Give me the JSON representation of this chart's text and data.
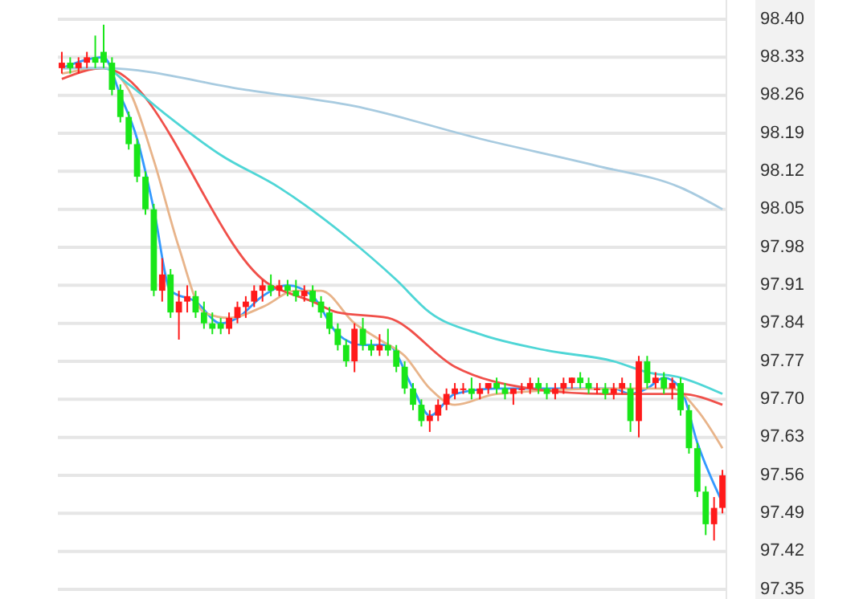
{
  "chart_data": {
    "type": "candlestick",
    "categories": [
      null,
      null,
      null,
      null,
      null,
      null,
      null,
      null,
      null,
      null,
      null,
      null,
      null,
      null,
      null,
      null,
      null,
      null,
      null,
      null,
      null,
      null,
      null,
      null,
      null,
      null,
      null,
      null,
      null,
      null,
      null,
      null,
      null,
      null,
      null,
      null,
      null,
      null,
      null,
      null,
      null,
      null,
      null,
      null,
      null,
      null,
      null,
      null,
      null,
      null,
      null,
      null,
      null,
      null,
      null,
      null,
      null,
      null,
      null,
      null,
      null,
      null,
      null,
      null,
      null,
      null,
      null,
      null,
      null,
      null,
      null,
      null,
      null,
      null,
      null,
      null,
      null,
      null,
      null,
      null
    ],
    "ohlc": [
      [
        98.31,
        98.34,
        98.3,
        98.32
      ],
      [
        98.32,
        98.33,
        98.3,
        98.31
      ],
      [
        98.31,
        98.33,
        98.3,
        98.32
      ],
      [
        98.32,
        98.34,
        98.31,
        98.33
      ],
      [
        98.33,
        98.37,
        98.31,
        98.32
      ],
      [
        98.34,
        98.39,
        98.31,
        98.32
      ],
      [
        98.32,
        98.33,
        98.26,
        98.27
      ],
      [
        98.27,
        98.28,
        98.21,
        98.22
      ],
      [
        98.22,
        98.23,
        98.16,
        98.17
      ],
      [
        98.17,
        98.18,
        98.1,
        98.11
      ],
      [
        98.11,
        98.12,
        98.04,
        98.05
      ],
      [
        98.05,
        98.06,
        97.89,
        97.9
      ],
      [
        97.9,
        97.96,
        97.88,
        97.93
      ],
      [
        97.93,
        97.94,
        97.85,
        97.86
      ],
      [
        97.86,
        97.9,
        97.81,
        97.88
      ],
      [
        97.88,
        97.91,
        97.86,
        97.89
      ],
      [
        97.89,
        97.9,
        97.85,
        97.86
      ],
      [
        97.86,
        97.88,
        97.83,
        97.84
      ],
      [
        97.84,
        97.86,
        97.82,
        97.83
      ],
      [
        97.84,
        97.85,
        97.82,
        97.83
      ],
      [
        97.83,
        97.86,
        97.82,
        97.85
      ],
      [
        97.85,
        97.88,
        97.84,
        97.87
      ],
      [
        97.87,
        97.89,
        97.85,
        97.88
      ],
      [
        97.88,
        97.91,
        97.87,
        97.9
      ],
      [
        97.9,
        97.92,
        97.88,
        97.91
      ],
      [
        97.91,
        97.93,
        97.89,
        97.9
      ],
      [
        97.9,
        97.92,
        97.89,
        97.91
      ],
      [
        97.91,
        97.92,
        97.89,
        97.9
      ],
      [
        97.9,
        97.92,
        97.88,
        97.89
      ],
      [
        97.89,
        97.91,
        97.88,
        97.9
      ],
      [
        97.9,
        97.91,
        97.87,
        97.88
      ],
      [
        97.88,
        97.89,
        97.85,
        97.86
      ],
      [
        97.86,
        97.87,
        97.82,
        97.83
      ],
      [
        97.83,
        97.84,
        97.79,
        97.8
      ],
      [
        97.8,
        97.81,
        97.76,
        97.77
      ],
      [
        97.77,
        97.84,
        97.75,
        97.83
      ],
      [
        97.83,
        97.85,
        97.79,
        97.8
      ],
      [
        97.8,
        97.81,
        97.78,
        97.79
      ],
      [
        97.79,
        97.82,
        97.78,
        97.8
      ],
      [
        97.8,
        97.83,
        97.78,
        97.79
      ],
      [
        97.79,
        97.8,
        97.75,
        97.76
      ],
      [
        97.76,
        97.77,
        97.71,
        97.72
      ],
      [
        97.72,
        97.73,
        97.68,
        97.69
      ],
      [
        97.69,
        97.7,
        97.65,
        97.66
      ],
      [
        97.66,
        97.68,
        97.64,
        97.67
      ],
      [
        97.67,
        97.7,
        97.66,
        97.69
      ],
      [
        97.69,
        97.72,
        97.68,
        97.71
      ],
      [
        97.71,
        97.73,
        97.7,
        97.72
      ],
      [
        97.72,
        97.73,
        97.71,
        97.72
      ],
      [
        97.72,
        97.74,
        97.7,
        97.71
      ],
      [
        97.71,
        97.73,
        97.7,
        97.72
      ],
      [
        97.72,
        97.73,
        97.71,
        97.73
      ],
      [
        97.73,
        97.74,
        97.71,
        97.72
      ],
      [
        97.72,
        97.73,
        97.7,
        97.71
      ],
      [
        97.71,
        97.72,
        97.69,
        97.72
      ],
      [
        97.72,
        97.73,
        97.71,
        97.72
      ],
      [
        97.72,
        97.74,
        97.71,
        97.73
      ],
      [
        97.73,
        97.74,
        97.71,
        97.72
      ],
      [
        97.72,
        97.73,
        97.7,
        97.71
      ],
      [
        97.71,
        97.73,
        97.7,
        97.72
      ],
      [
        97.72,
        97.74,
        97.71,
        97.73
      ],
      [
        97.73,
        97.74,
        97.72,
        97.74
      ],
      [
        97.74,
        97.75,
        97.72,
        97.73
      ],
      [
        97.73,
        97.74,
        97.71,
        97.72
      ],
      [
        97.72,
        97.73,
        97.71,
        97.72
      ],
      [
        97.72,
        97.73,
        97.7,
        97.71
      ],
      [
        97.71,
        97.73,
        97.7,
        97.72
      ],
      [
        97.72,
        97.74,
        97.71,
        97.73
      ],
      [
        97.72,
        97.73,
        97.64,
        97.66
      ],
      [
        97.66,
        97.78,
        97.63,
        97.77
      ],
      [
        97.77,
        97.78,
        97.72,
        97.73
      ],
      [
        97.73,
        97.75,
        97.72,
        97.74
      ],
      [
        97.74,
        97.75,
        97.71,
        97.72
      ],
      [
        97.72,
        97.74,
        97.7,
        97.73
      ],
      [
        97.73,
        97.74,
        97.67,
        97.68
      ],
      [
        97.68,
        97.69,
        97.6,
        97.61
      ],
      [
        97.61,
        97.62,
        97.52,
        97.53
      ],
      [
        97.53,
        97.54,
        97.45,
        97.47
      ],
      [
        97.47,
        97.52,
        97.44,
        97.5
      ],
      [
        97.5,
        97.57,
        97.49,
        97.56
      ]
    ],
    "series": [
      {
        "type": "line",
        "color": "#3399ff",
        "values": [
          98.31,
          null,
          null,
          null,
          null,
          98.33,
          null,
          98.26,
          null,
          98.18,
          null,
          98.05,
          null,
          97.9,
          null,
          null,
          97.88,
          null,
          null,
          97.84,
          null,
          97.85,
          null,
          null,
          97.89,
          null,
          null,
          97.91,
          null,
          null,
          97.89,
          null,
          null,
          97.82,
          null,
          null,
          97.8,
          null,
          null,
          97.8,
          null,
          null,
          97.72,
          null,
          97.67,
          null,
          null,
          97.71,
          null,
          null,
          null,
          null,
          97.72,
          null,
          null,
          null,
          null,
          null,
          null,
          null,
          97.72,
          null,
          null,
          null,
          null,
          null,
          97.72,
          null,
          97.71,
          null,
          97.72,
          null,
          97.74,
          null,
          97.72,
          null,
          97.62,
          null,
          null,
          97.51
        ]
      },
      {
        "type": "line",
        "color": "#e8b48a",
        "values": [
          98.3,
          null,
          null,
          null,
          null,
          98.31,
          null,
          null,
          98.27,
          null,
          null,
          98.14,
          null,
          null,
          97.98,
          null,
          null,
          97.86,
          null,
          null,
          97.85,
          null,
          null,
          null,
          97.87,
          null,
          null,
          null,
          97.9,
          null,
          null,
          97.9,
          null,
          null,
          null,
          97.84,
          null,
          null,
          97.81,
          null,
          null,
          97.78,
          null,
          null,
          97.72,
          null,
          null,
          97.69,
          null,
          null,
          null,
          null,
          97.71,
          null,
          null,
          null,
          null,
          null,
          null,
          null,
          null,
          null,
          null,
          null,
          null,
          null,
          97.72,
          null,
          null,
          null,
          97.72,
          null,
          null,
          97.72,
          null,
          null,
          97.68,
          null,
          null,
          97.61
        ]
      },
      {
        "type": "line",
        "color": "#f0504a",
        "values": [
          98.29,
          null,
          null,
          null,
          null,
          98.31,
          null,
          null,
          null,
          null,
          null,
          null,
          null,
          null,
          null,
          null,
          null,
          null,
          null,
          null,
          null,
          null,
          null,
          null,
          null,
          97.91,
          null,
          null,
          null,
          null,
          97.88,
          null,
          null,
          97.86,
          null,
          null,
          null,
          null,
          null,
          97.85,
          null,
          null,
          null,
          null,
          null,
          null,
          null,
          97.76,
          null,
          null,
          null,
          null,
          null,
          null,
          null,
          null,
          97.72,
          null,
          null,
          null,
          null,
          null,
          null,
          null,
          null,
          97.71,
          null,
          null,
          null,
          null,
          97.71,
          null,
          null,
          null,
          97.71,
          null,
          null,
          null,
          null,
          97.69
        ]
      },
      {
        "type": "line",
        "color": "#4fd6d6",
        "values": [
          98.31,
          null,
          null,
          null,
          null,
          98.31,
          null,
          null,
          98.28,
          null,
          null,
          null,
          98.23,
          null,
          null,
          null,
          null,
          null,
          null,
          98.15,
          null,
          null,
          null,
          null,
          null,
          null,
          98.09,
          null,
          null,
          null,
          null,
          null,
          null,
          null,
          98.0,
          null,
          null,
          null,
          null,
          null,
          97.92,
          null,
          null,
          null,
          97.86,
          null,
          null,
          null,
          null,
          null,
          97.82,
          null,
          null,
          null,
          null,
          null,
          null,
          null,
          97.79,
          null,
          null,
          null,
          null,
          null,
          null,
          null,
          97.77,
          null,
          null,
          null,
          97.75,
          null,
          null,
          null,
          97.74,
          null,
          null,
          null,
          null,
          97.71
        ]
      },
      {
        "type": "line",
        "color": "#a8cbe0",
        "values": [
          98.31,
          null,
          null,
          null,
          null,
          98.31,
          null,
          null,
          null,
          null,
          null,
          null,
          null,
          null,
          null,
          null,
          null,
          null,
          null,
          null,
          null,
          null,
          98.27,
          null,
          null,
          null,
          null,
          null,
          null,
          null,
          null,
          null,
          null,
          null,
          null,
          98.24,
          null,
          null,
          null,
          null,
          null,
          null,
          null,
          null,
          null,
          null,
          null,
          null,
          null,
          null,
          98.18,
          null,
          null,
          null,
          null,
          null,
          null,
          null,
          null,
          null,
          null,
          null,
          null,
          null,
          98.13,
          null,
          null,
          null,
          null,
          null,
          null,
          null,
          null,
          null,
          98.09,
          null,
          null,
          null,
          null,
          98.05
        ]
      }
    ],
    "ylim": [
      97.35,
      98.4
    ],
    "yticks": [
      {
        "value": 98.4,
        "label": "98.40"
      },
      98.33,
      98.26,
      98.19,
      98.12,
      98.05,
      97.98,
      97.91,
      97.84,
      97.77,
      {
        "value": 97.7,
        "label": "97.70"
      },
      97.63,
      97.56,
      97.49,
      97.42,
      97.35
    ],
    "grid": "y",
    "tick_labels": "y"
  }
}
